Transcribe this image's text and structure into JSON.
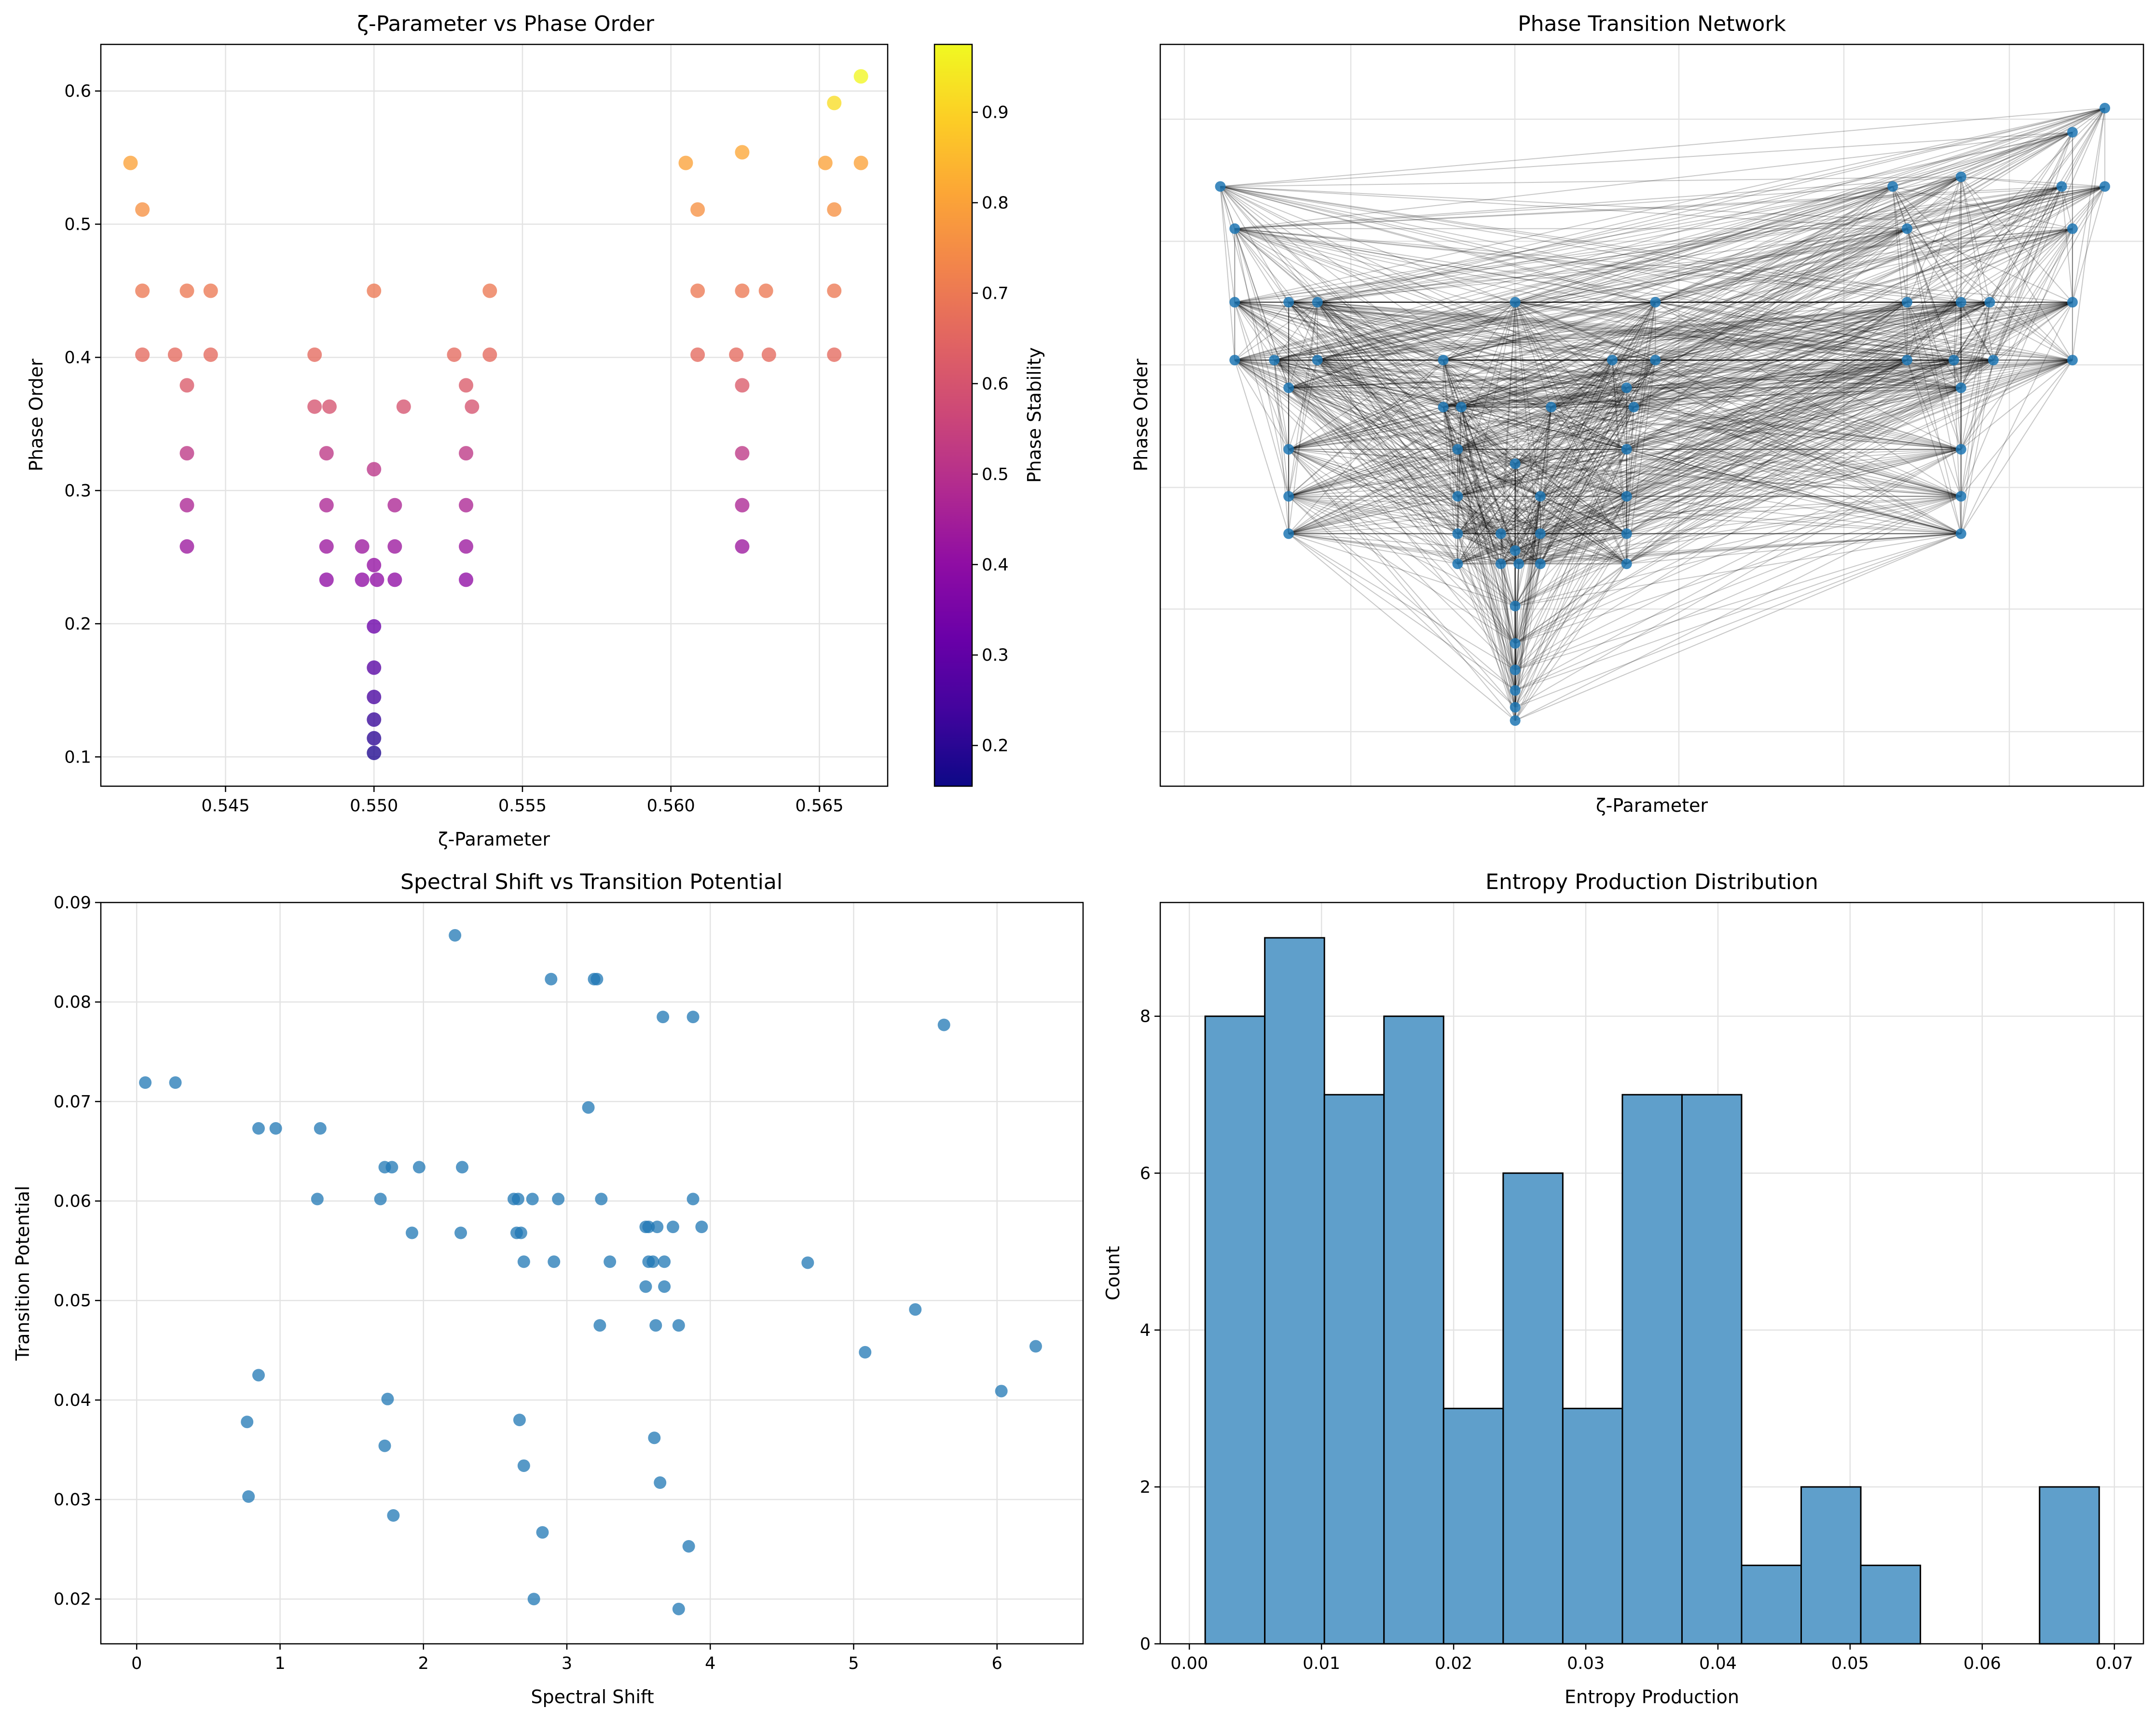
{
  "chart_data": [
    {
      "type": "scatter",
      "title": "ζ-Parameter vs Phase Order",
      "xlabel": "ζ-Parameter",
      "ylabel": "Phase Order",
      "xlim": [
        0.5408,
        0.5673
      ],
      "ylim": [
        0.078,
        0.635
      ],
      "xticks": [
        0.545,
        0.55,
        0.555,
        0.56,
        0.565
      ],
      "xtick_labels": [
        "0.545",
        "0.550",
        "0.555",
        "0.560",
        "0.565"
      ],
      "yticks": [
        0.1,
        0.2,
        0.3,
        0.4,
        0.5,
        0.6
      ],
      "ytick_labels": [
        "0.1",
        "0.2",
        "0.3",
        "0.4",
        "0.5",
        "0.6"
      ],
      "grid": true,
      "colorbar": {
        "label": "Phase Stability",
        "range": [
          0.155,
          0.975
        ],
        "ticks": [
          0.2,
          0.3,
          0.4,
          0.5,
          0.6,
          0.7,
          0.8,
          0.9
        ],
        "tick_labels": [
          "0.2",
          "0.3",
          "0.4",
          "0.5",
          "0.6",
          "0.7",
          "0.8",
          "0.9"
        ],
        "colormap": [
          "#0d0887",
          "#41049d",
          "#6a00a8",
          "#8f0da4",
          "#b12a90",
          "#cc4778",
          "#e16462",
          "#f2844b",
          "#fca636",
          "#fcce25",
          "#f0f921"
        ]
      },
      "points": [
        [
          0.5418,
          0.546,
          0.8
        ],
        [
          0.5422,
          0.511,
          0.76
        ],
        [
          0.5422,
          0.45,
          0.7
        ],
        [
          0.5422,
          0.402,
          0.66
        ],
        [
          0.5433,
          0.402,
          0.66
        ],
        [
          0.5437,
          0.45,
          0.7
        ],
        [
          0.5445,
          0.45,
          0.7
        ],
        [
          0.5445,
          0.402,
          0.66
        ],
        [
          0.5437,
          0.379,
          0.62
        ],
        [
          0.5437,
          0.328,
          0.52
        ],
        [
          0.5437,
          0.289,
          0.47
        ],
        [
          0.5437,
          0.258,
          0.43
        ],
        [
          0.548,
          0.402,
          0.66
        ],
        [
          0.548,
          0.363,
          0.6
        ],
        [
          0.5485,
          0.363,
          0.6
        ],
        [
          0.5484,
          0.328,
          0.52
        ],
        [
          0.5484,
          0.289,
          0.47
        ],
        [
          0.5484,
          0.258,
          0.43
        ],
        [
          0.5484,
          0.233,
          0.4
        ],
        [
          0.55,
          0.45,
          0.7
        ],
        [
          0.55,
          0.316,
          0.51
        ],
        [
          0.5496,
          0.258,
          0.43
        ],
        [
          0.5496,
          0.233,
          0.4
        ],
        [
          0.55,
          0.244,
          0.41
        ],
        [
          0.5501,
          0.233,
          0.4
        ],
        [
          0.55,
          0.198,
          0.32
        ],
        [
          0.55,
          0.167,
          0.28
        ],
        [
          0.55,
          0.145,
          0.25
        ],
        [
          0.55,
          0.128,
          0.22
        ],
        [
          0.55,
          0.114,
          0.2
        ],
        [
          0.55,
          0.103,
          0.18
        ],
        [
          0.5507,
          0.289,
          0.47
        ],
        [
          0.5507,
          0.258,
          0.43
        ],
        [
          0.5507,
          0.233,
          0.4
        ],
        [
          0.551,
          0.363,
          0.6
        ],
        [
          0.5527,
          0.402,
          0.66
        ],
        [
          0.5531,
          0.379,
          0.62
        ],
        [
          0.5533,
          0.363,
          0.6
        ],
        [
          0.5531,
          0.328,
          0.52
        ],
        [
          0.5531,
          0.289,
          0.47
        ],
        [
          0.5531,
          0.258,
          0.43
        ],
        [
          0.5531,
          0.233,
          0.4
        ],
        [
          0.5539,
          0.45,
          0.7
        ],
        [
          0.5539,
          0.402,
          0.66
        ],
        [
          0.5605,
          0.546,
          0.8
        ],
        [
          0.5609,
          0.511,
          0.76
        ],
        [
          0.5609,
          0.45,
          0.7
        ],
        [
          0.5609,
          0.402,
          0.66
        ],
        [
          0.5624,
          0.554,
          0.81
        ],
        [
          0.5622,
          0.402,
          0.66
        ],
        [
          0.5624,
          0.45,
          0.7
        ],
        [
          0.5632,
          0.45,
          0.7
        ],
        [
          0.5633,
          0.402,
          0.66
        ],
        [
          0.5624,
          0.379,
          0.62
        ],
        [
          0.5624,
          0.328,
          0.52
        ],
        [
          0.5624,
          0.289,
          0.47
        ],
        [
          0.5624,
          0.258,
          0.43
        ],
        [
          0.5652,
          0.546,
          0.8
        ],
        [
          0.5655,
          0.591,
          0.92
        ],
        [
          0.5655,
          0.511,
          0.76
        ],
        [
          0.5655,
          0.45,
          0.7
        ],
        [
          0.5655,
          0.402,
          0.66
        ],
        [
          0.5664,
          0.611,
          0.97
        ],
        [
          0.5664,
          0.546,
          0.8
        ]
      ]
    },
    {
      "type": "network",
      "title": "Phase Transition Network",
      "xlabel": "ζ-Parameter",
      "ylabel": "Phase Order",
      "xlim": [
        0.5408,
        0.5673
      ],
      "ylim": [
        0.078,
        0.635
      ],
      "grid": true,
      "nodes": [
        [
          0.5418,
          0.546
        ],
        [
          0.5422,
          0.511
        ],
        [
          0.5422,
          0.45
        ],
        [
          0.5422,
          0.402
        ],
        [
          0.5433,
          0.402
        ],
        [
          0.5437,
          0.45
        ],
        [
          0.5445,
          0.45
        ],
        [
          0.5445,
          0.402
        ],
        [
          0.5437,
          0.379
        ],
        [
          0.5437,
          0.328
        ],
        [
          0.5437,
          0.289
        ],
        [
          0.5437,
          0.258
        ],
        [
          0.548,
          0.402
        ],
        [
          0.548,
          0.363
        ],
        [
          0.5485,
          0.363
        ],
        [
          0.5484,
          0.328
        ],
        [
          0.5484,
          0.289
        ],
        [
          0.5484,
          0.258
        ],
        [
          0.5484,
          0.233
        ],
        [
          0.55,
          0.45
        ],
        [
          0.55,
          0.316
        ],
        [
          0.5496,
          0.258
        ],
        [
          0.5496,
          0.233
        ],
        [
          0.55,
          0.244
        ],
        [
          0.5501,
          0.233
        ],
        [
          0.55,
          0.198
        ],
        [
          0.55,
          0.167
        ],
        [
          0.55,
          0.145
        ],
        [
          0.55,
          0.128
        ],
        [
          0.55,
          0.114
        ],
        [
          0.55,
          0.103
        ],
        [
          0.5507,
          0.289
        ],
        [
          0.5507,
          0.258
        ],
        [
          0.5507,
          0.233
        ],
        [
          0.551,
          0.363
        ],
        [
          0.5527,
          0.402
        ],
        [
          0.5531,
          0.379
        ],
        [
          0.5533,
          0.363
        ],
        [
          0.5531,
          0.328
        ],
        [
          0.5531,
          0.289
        ],
        [
          0.5531,
          0.258
        ],
        [
          0.5531,
          0.233
        ],
        [
          0.5539,
          0.45
        ],
        [
          0.5539,
          0.402
        ],
        [
          0.5605,
          0.546
        ],
        [
          0.5609,
          0.511
        ],
        [
          0.5609,
          0.45
        ],
        [
          0.5609,
          0.402
        ],
        [
          0.5624,
          0.554
        ],
        [
          0.5622,
          0.402
        ],
        [
          0.5624,
          0.45
        ],
        [
          0.5632,
          0.45
        ],
        [
          0.5633,
          0.402
        ],
        [
          0.5624,
          0.379
        ],
        [
          0.5624,
          0.328
        ],
        [
          0.5624,
          0.289
        ],
        [
          0.5624,
          0.258
        ],
        [
          0.5652,
          0.546
        ],
        [
          0.5655,
          0.591
        ],
        [
          0.5655,
          0.511
        ],
        [
          0.5655,
          0.45
        ],
        [
          0.5655,
          0.402
        ],
        [
          0.5664,
          0.611
        ],
        [
          0.5664,
          0.546
        ]
      ]
    },
    {
      "type": "scatter",
      "title": "Spectral Shift vs Transition Potential",
      "xlabel": "Spectral Shift",
      "ylabel": "Transition Potential",
      "xlim": [
        -0.25,
        6.6
      ],
      "ylim": [
        0.0155,
        0.09
      ],
      "xticks": [
        0,
        1,
        2,
        3,
        4,
        5,
        6
      ],
      "xtick_labels": [
        "0",
        "1",
        "2",
        "3",
        "4",
        "5",
        "6"
      ],
      "yticks": [
        0.02,
        0.03,
        0.04,
        0.05,
        0.06,
        0.07,
        0.08,
        0.09
      ],
      "ytick_labels": [
        "0.02",
        "0.03",
        "0.04",
        "0.05",
        "0.06",
        "0.07",
        "0.08",
        "0.09"
      ],
      "grid": true,
      "points": [
        [
          2.22,
          0.0867
        ],
        [
          2.89,
          0.0823
        ],
        [
          3.19,
          0.0823
        ],
        [
          3.21,
          0.0823
        ],
        [
          3.67,
          0.0785
        ],
        [
          3.88,
          0.0785
        ],
        [
          5.63,
          0.0777
        ],
        [
          0.06,
          0.0719
        ],
        [
          0.27,
          0.0719
        ],
        [
          3.15,
          0.0694
        ],
        [
          0.85,
          0.0673
        ],
        [
          0.97,
          0.0673
        ],
        [
          1.28,
          0.0673
        ],
        [
          1.73,
          0.0634
        ],
        [
          1.78,
          0.0634
        ],
        [
          1.97,
          0.0634
        ],
        [
          2.27,
          0.0634
        ],
        [
          1.26,
          0.0602
        ],
        [
          1.7,
          0.0602
        ],
        [
          2.63,
          0.0602
        ],
        [
          2.66,
          0.0602
        ],
        [
          2.76,
          0.0602
        ],
        [
          2.94,
          0.0602
        ],
        [
          3.24,
          0.0602
        ],
        [
          3.88,
          0.0602
        ],
        [
          1.92,
          0.0568
        ],
        [
          2.26,
          0.0568
        ],
        [
          2.65,
          0.0568
        ],
        [
          2.68,
          0.0568
        ],
        [
          3.55,
          0.0574
        ],
        [
          3.57,
          0.0574
        ],
        [
          3.63,
          0.0574
        ],
        [
          3.74,
          0.0574
        ],
        [
          3.94,
          0.0574
        ],
        [
          2.7,
          0.0539
        ],
        [
          2.91,
          0.0539
        ],
        [
          3.3,
          0.0539
        ],
        [
          3.57,
          0.0539
        ],
        [
          3.6,
          0.0539
        ],
        [
          3.68,
          0.0539
        ],
        [
          4.68,
          0.0538
        ],
        [
          3.55,
          0.0514
        ],
        [
          3.68,
          0.0514
        ],
        [
          3.23,
          0.0475
        ],
        [
          3.62,
          0.0475
        ],
        [
          3.78,
          0.0475
        ],
        [
          5.43,
          0.0491
        ],
        [
          6.27,
          0.0454
        ],
        [
          5.08,
          0.0448
        ],
        [
          6.03,
          0.0409
        ],
        [
          0.85,
          0.0425
        ],
        [
          0.77,
          0.0378
        ],
        [
          1.75,
          0.0401
        ],
        [
          2.67,
          0.038
        ],
        [
          1.73,
          0.0354
        ],
        [
          3.61,
          0.0362
        ],
        [
          2.7,
          0.0334
        ],
        [
          3.65,
          0.0317
        ],
        [
          0.78,
          0.0303
        ],
        [
          1.79,
          0.0284
        ],
        [
          2.83,
          0.0267
        ],
        [
          3.85,
          0.0253
        ],
        [
          2.77,
          0.02
        ],
        [
          3.78,
          0.019
        ]
      ]
    },
    {
      "type": "bar",
      "title": "Entropy Production Distribution",
      "xlabel": "Entropy Production",
      "ylabel": "Count",
      "xlim": [
        -0.0022,
        0.0722
      ],
      "ylim": [
        0,
        9.45
      ],
      "xticks": [
        0.0,
        0.01,
        0.02,
        0.03,
        0.04,
        0.05,
        0.06,
        0.07
      ],
      "xtick_labels": [
        "0.00",
        "0.01",
        "0.02",
        "0.03",
        "0.04",
        "0.05",
        "0.06",
        "0.07"
      ],
      "yticks": [
        0,
        2,
        4,
        6,
        8
      ],
      "ytick_labels": [
        "0",
        "2",
        "4",
        "6",
        "8"
      ],
      "grid": true,
      "bin_start": 0.0012,
      "bin_width": 0.00451,
      "values": [
        8,
        9,
        7,
        8,
        3,
        6,
        3,
        7,
        7,
        1,
        2,
        1,
        0,
        0,
        2
      ]
    }
  ],
  "colors": {
    "points": "#1f77b4",
    "bars": "#5f9fcb",
    "edges": "#000000",
    "grid": "#e3e3e3"
  }
}
